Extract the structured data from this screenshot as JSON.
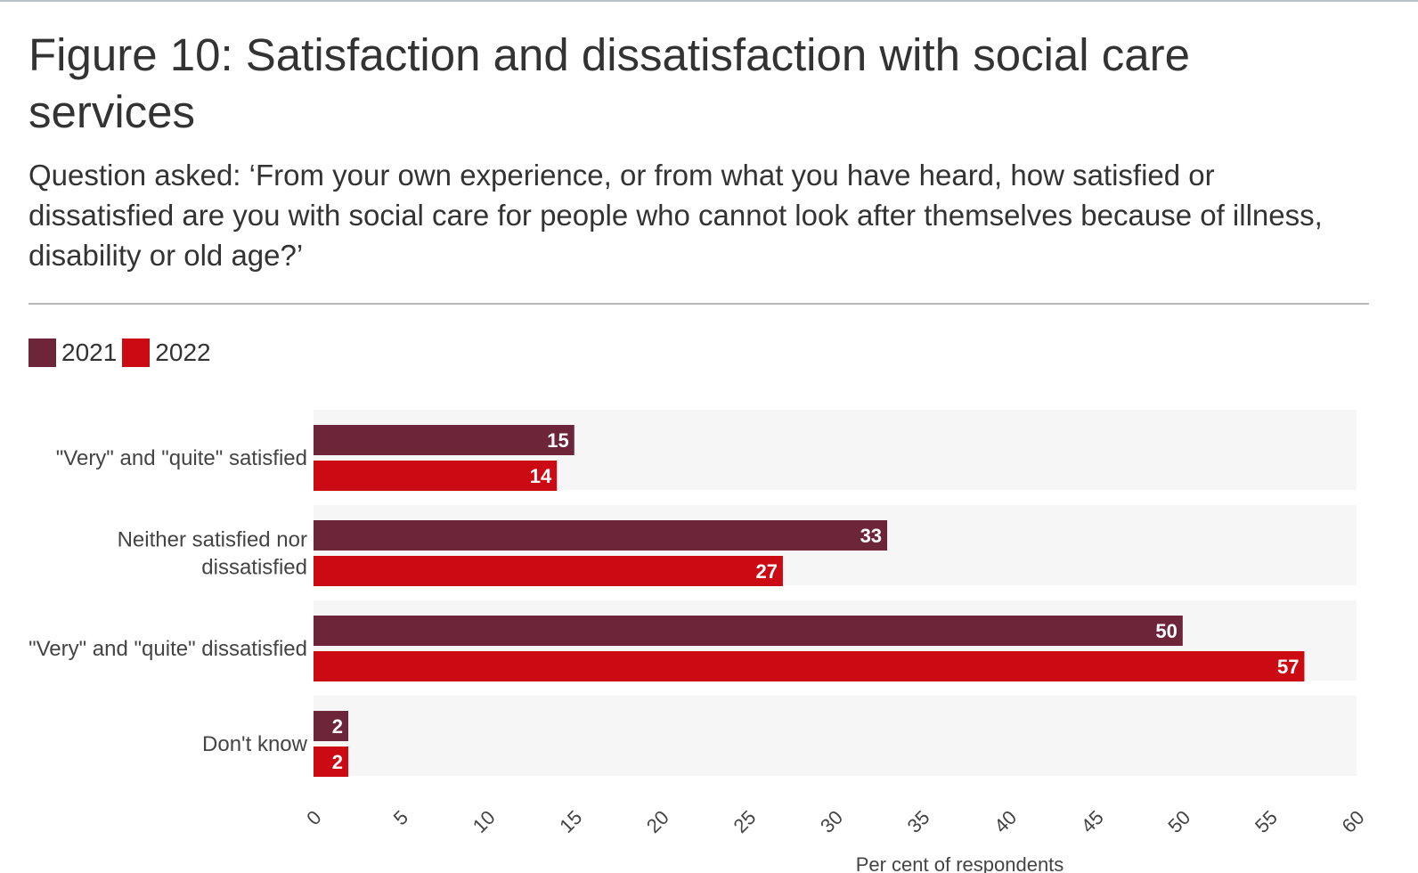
{
  "header": {
    "title": "Figure 10: Satisfaction and dissatisfaction with social care services",
    "subtitle": "Question asked: ‘From your own experience, or from what you have heard, how satisfied or dissatisfied are you with social care for people who cannot look after themselves because of illness, disability or old age?’"
  },
  "colors": {
    "series_2021": "#6d2539",
    "series_2022": "#cc0a14",
    "plot_background": "#f6f6f6",
    "text": "#333333"
  },
  "chart_data": {
    "type": "bar",
    "orientation": "horizontal",
    "title": "Figure 10: Satisfaction and dissatisfaction with social care services",
    "categories": [
      "\"Very\" and \"quite\" satisfied",
      "Neither satisfied nor dissatisfied",
      "\"Very\" and \"quite\" dissatisfied",
      "Don't know"
    ],
    "series": [
      {
        "name": "2021",
        "values": [
          15,
          33,
          50,
          2
        ]
      },
      {
        "name": "2022",
        "values": [
          14,
          27,
          57,
          2
        ]
      }
    ],
    "xlim": [
      0,
      60
    ],
    "xticks": [
      "0",
      "5",
      "10",
      "15",
      "20",
      "25",
      "30",
      "35",
      "40",
      "45",
      "50",
      "55",
      "60"
    ],
    "xlabel": "Per cent of respondents",
    "legend_position": "top-left",
    "data_labels": true
  }
}
